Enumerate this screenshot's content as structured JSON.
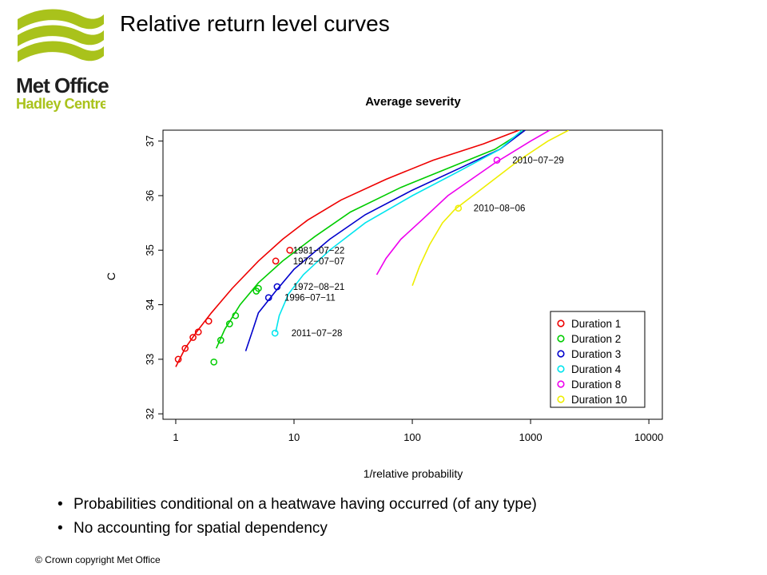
{
  "slide": {
    "title": "Relative return level curves",
    "bullets": [
      "Probabilities conditional on a heatwave having occurred (of any type)",
      "No accounting for spatial dependency"
    ],
    "copyright": "© Crown copyright   Met Office"
  },
  "logo": {
    "line1": "Met Office",
    "line2": "Hadley Centre",
    "green": "#a9c21b",
    "dark": "#1f1f1f",
    "icon": "wave-logo-icon"
  },
  "chart_data": {
    "type": "line",
    "title": "Average severity",
    "xlabel": "1/relative probability",
    "ylabel": "C",
    "x_scale": "log",
    "xlim": [
      0.78,
      13000
    ],
    "ylim": [
      31.9,
      37.2
    ],
    "x_ticks": [
      1,
      10,
      100,
      1000,
      10000
    ],
    "x_tick_labels": [
      "1",
      "10",
      "100",
      "1000",
      "10000"
    ],
    "y_ticks": [
      32,
      33,
      34,
      35,
      36,
      37
    ],
    "y_tick_labels": [
      "32",
      "33",
      "34",
      "35",
      "36",
      "37"
    ],
    "grid": false,
    "legend_position": "bottom-right",
    "series": [
      {
        "name": "Duration 1",
        "color": "#ee0000",
        "curve": [
          [
            1.0,
            32.86
          ],
          [
            1.2,
            33.2
          ],
          [
            1.5,
            33.5
          ],
          [
            2,
            33.85
          ],
          [
            3,
            34.3
          ],
          [
            5,
            34.8
          ],
          [
            8,
            35.2
          ],
          [
            13,
            35.55
          ],
          [
            25,
            35.92
          ],
          [
            60,
            36.3
          ],
          [
            150,
            36.65
          ],
          [
            400,
            36.95
          ],
          [
            800,
            37.2
          ]
        ],
        "points": [
          [
            1.05,
            33.0
          ],
          [
            1.2,
            33.2
          ],
          [
            1.4,
            33.4
          ],
          [
            1.55,
            33.5
          ],
          [
            1.9,
            33.7
          ],
          [
            7.0,
            34.8
          ],
          [
            9.2,
            35.0
          ]
        ]
      },
      {
        "name": "Duration 2",
        "color": "#00cc00",
        "curve": [
          [
            2.2,
            33.2
          ],
          [
            2.6,
            33.55
          ],
          [
            3.5,
            34.0
          ],
          [
            5,
            34.4
          ],
          [
            8,
            34.8
          ],
          [
            15,
            35.25
          ],
          [
            30,
            35.7
          ],
          [
            80,
            36.15
          ],
          [
            200,
            36.5
          ],
          [
            500,
            36.85
          ],
          [
            900,
            37.2
          ]
        ],
        "points": [
          [
            2.1,
            32.95
          ],
          [
            2.4,
            33.35
          ],
          [
            2.85,
            33.65
          ],
          [
            3.2,
            33.8
          ],
          [
            4.8,
            34.25
          ],
          [
            5.0,
            34.3
          ]
        ]
      },
      {
        "name": "Duration 3",
        "color": "#0000cc",
        "curve": [
          [
            3.9,
            33.15
          ],
          [
            4.5,
            33.55
          ],
          [
            5,
            33.85
          ],
          [
            7,
            34.25
          ],
          [
            10,
            34.65
          ],
          [
            20,
            35.2
          ],
          [
            40,
            35.65
          ],
          [
            100,
            36.1
          ],
          [
            250,
            36.5
          ],
          [
            550,
            36.85
          ],
          [
            900,
            37.2
          ]
        ],
        "points": [
          [
            6.1,
            34.13
          ],
          [
            7.2,
            34.33
          ]
        ]
      },
      {
        "name": "Duration 4",
        "color": "#00e5ee",
        "curve": [
          [
            7.0,
            33.5
          ],
          [
            7.5,
            33.8
          ],
          [
            9,
            34.2
          ],
          [
            12,
            34.55
          ],
          [
            20,
            35.0
          ],
          [
            40,
            35.5
          ],
          [
            100,
            36.0
          ],
          [
            250,
            36.45
          ],
          [
            550,
            36.85
          ],
          [
            850,
            37.2
          ]
        ],
        "points": [
          [
            6.9,
            33.48
          ]
        ]
      },
      {
        "name": "Duration 8",
        "color": "#ee00ee",
        "curve": [
          [
            50,
            34.55
          ],
          [
            60,
            34.85
          ],
          [
            80,
            35.2
          ],
          [
            120,
            35.55
          ],
          [
            200,
            36.0
          ],
          [
            500,
            36.6
          ],
          [
            1000,
            37.0
          ],
          [
            1450,
            37.2
          ]
        ],
        "points": [
          [
            520,
            36.65
          ]
        ]
      },
      {
        "name": "Duration 10",
        "color": "#eeee00",
        "curve": [
          [
            100,
            34.35
          ],
          [
            115,
            34.7
          ],
          [
            140,
            35.1
          ],
          [
            180,
            35.5
          ],
          [
            230,
            35.75
          ],
          [
            400,
            36.15
          ],
          [
            800,
            36.65
          ],
          [
            1400,
            37.0
          ],
          [
            2100,
            37.2
          ]
        ],
        "points": [
          [
            245,
            35.77
          ]
        ]
      }
    ],
    "annotations": [
      {
        "text": "1981−07−22",
        "x": 9.8,
        "y": 35.0
      },
      {
        "text": "1972−07−07",
        "x": 9.8,
        "y": 34.8
      },
      {
        "text": "1972−08−21",
        "x": 9.8,
        "y": 34.33
      },
      {
        "text": "1996−07−11",
        "x": 8.3,
        "y": 34.13
      },
      {
        "text": "2011−07−28",
        "x": 9.5,
        "y": 33.48
      },
      {
        "text": "2010−07−29",
        "x": 700,
        "y": 36.65
      },
      {
        "text": "2010−08−06",
        "x": 330,
        "y": 35.77
      }
    ]
  }
}
